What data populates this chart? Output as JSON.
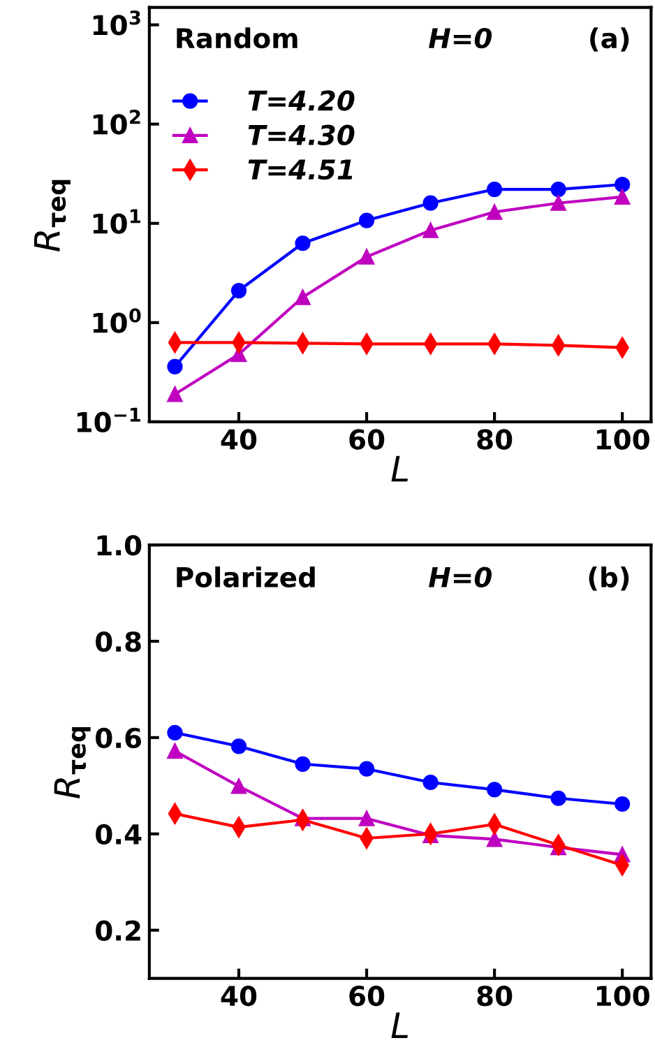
{
  "chart_data": [
    {
      "type": "line",
      "xlabel": "L",
      "ylabel": "R$_{τeq}$",
      "log": "y",
      "x": [
        30,
        40,
        50,
        60,
        70,
        80,
        90,
        100
      ],
      "xlim": [
        26,
        104.5
      ],
      "xticks": [
        40,
        60,
        80,
        100
      ],
      "ylim": [
        0.1,
        1500
      ],
      "yticks": [
        {
          "value": 0.1,
          "label": "10$^{−1}$"
        },
        {
          "value": 1,
          "label": "10$^{0}$"
        },
        {
          "value": 10,
          "label": "10$^{1}$"
        },
        {
          "value": 100,
          "label": "10$^{2}$"
        },
        {
          "value": 1000,
          "label": "10$^{3}$"
        }
      ],
      "legend": "top left",
      "grid": false,
      "annotations": [
        "Random",
        "H=0",
        "(a)"
      ],
      "series": [
        {
          "name": "T=4.20",
          "color": "#0000ff",
          "marker": "circle",
          "values": [
            0.36,
            2.1,
            6.3,
            10.7,
            16,
            22,
            22,
            24.6
          ]
        },
        {
          "name": "T=4.30",
          "color": "#bf00bf",
          "marker": "triangle",
          "values": [
            0.19,
            0.48,
            1.8,
            4.6,
            8.5,
            13,
            16,
            18.5
          ]
        },
        {
          "name": "T=4.51",
          "color": "#ff0000",
          "marker": "diamond",
          "values": [
            0.63,
            0.63,
            0.62,
            0.61,
            0.61,
            0.61,
            0.59,
            0.56
          ]
        }
      ]
    },
    {
      "type": "line",
      "xlabel": "L",
      "ylabel": "R$_{τeq}$",
      "x": [
        30,
        40,
        50,
        60,
        70,
        80,
        90,
        100
      ],
      "xlim": [
        26,
        104.5
      ],
      "xticks": [
        40,
        60,
        80,
        100
      ],
      "ylim": [
        0.1,
        1.0
      ],
      "yticks": [
        {
          "value": 0.2,
          "label": "0.2"
        },
        {
          "value": 0.4,
          "label": "0.4"
        },
        {
          "value": 0.6,
          "label": "0.6"
        },
        {
          "value": 0.8,
          "label": "0.8"
        },
        {
          "value": 1.0,
          "label": "1.0"
        }
      ],
      "grid": false,
      "annotations": [
        "Polarized",
        "H=0",
        "(b)"
      ],
      "series": [
        {
          "color": "#0000ff",
          "marker": "circle",
          "values": [
            0.61,
            0.582,
            0.545,
            0.535,
            0.507,
            0.492,
            0.474,
            0.462
          ]
        },
        {
          "color": "#bf00bf",
          "marker": "triangle",
          "values": [
            0.572,
            0.499,
            0.432,
            0.432,
            0.397,
            0.389,
            0.372,
            0.357
          ]
        },
        {
          "color": "#ff0000",
          "marker": "diamond",
          "values": [
            0.442,
            0.414,
            0.429,
            0.391,
            0.4,
            0.42,
            0.377,
            0.335
          ]
        }
      ]
    }
  ]
}
